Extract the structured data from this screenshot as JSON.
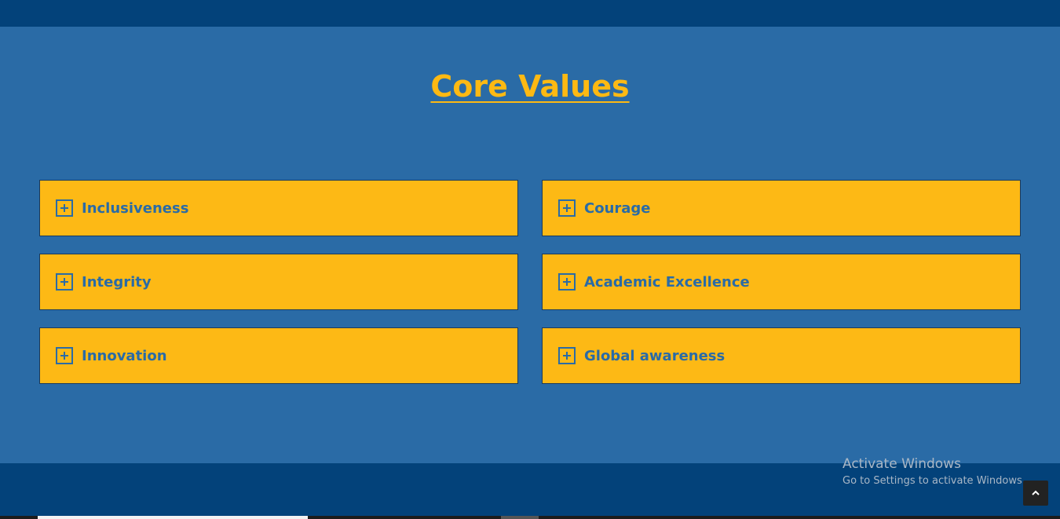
{
  "section": {
    "title": "Core Values"
  },
  "values": {
    "items": [
      {
        "label": "Inclusiveness"
      },
      {
        "label": "Courage"
      },
      {
        "label": "Integrity"
      },
      {
        "label": "Academic Excellence"
      },
      {
        "label": "Innovation"
      },
      {
        "label": "Global awareness"
      }
    ]
  },
  "watermark": {
    "line1": "Activate Windows",
    "line2": "Go to Settings to activate Windows."
  },
  "colors": {
    "background": "#2a6ba6",
    "dark_bar": "#03427a",
    "card": "#fdb915",
    "accent_text": "#fdb913"
  },
  "icons": {
    "expand": "plus-square-icon",
    "scroll_top": "chevron-up-icon"
  }
}
